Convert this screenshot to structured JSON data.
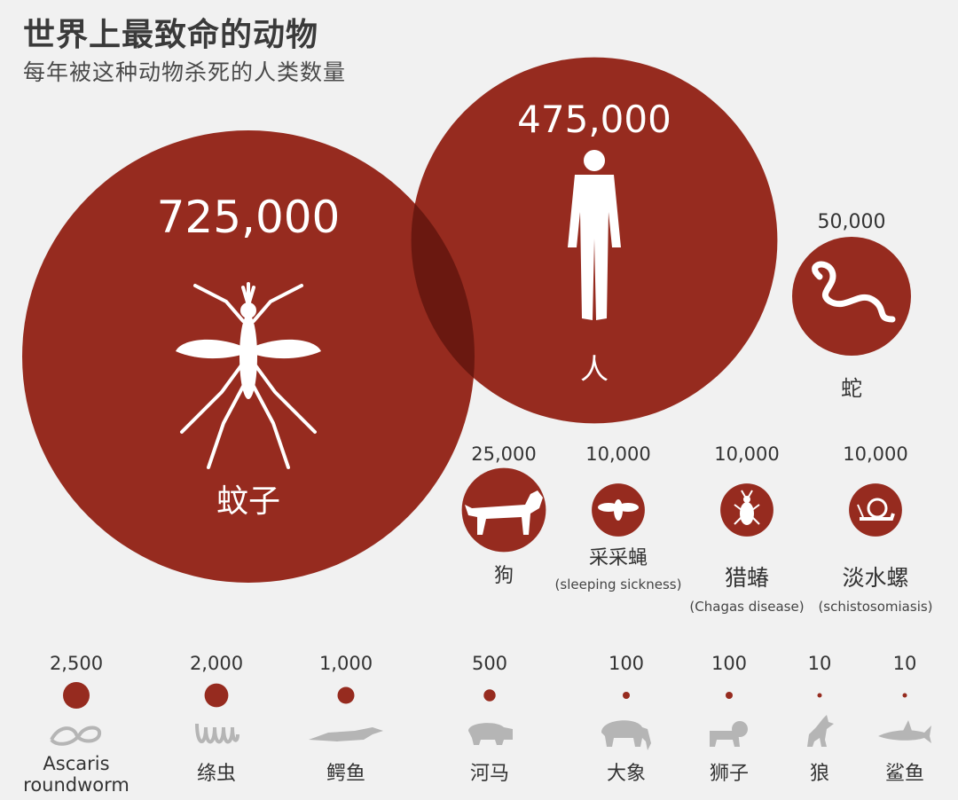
{
  "title": "世界上最致命的动物",
  "subtitle": "每年被这种动物杀死的人类数量",
  "colors": {
    "bubble": "#962b1f",
    "overlap": "#6a1810",
    "icon": "#ffffff",
    "small_icon": "#b5b5b5",
    "label": "#333333",
    "background": "#f1f1f1"
  },
  "chart_data": {
    "type": "bubble",
    "title": "世界上最致命的动物",
    "subtitle": "每年被这种动物杀死的人类数量",
    "series": [
      {
        "label": "蚊子",
        "value": 725000,
        "value_label": "725,000",
        "icon": "mosquito-icon"
      },
      {
        "label": "人",
        "value": 475000,
        "value_label": "475,000",
        "icon": "human-icon"
      },
      {
        "label": "蛇",
        "value": 50000,
        "value_label": "50,000",
        "icon": "snake-icon"
      },
      {
        "label": "狗",
        "value": 25000,
        "value_label": "25,000",
        "icon": "dog-icon"
      },
      {
        "label": "采采蝇",
        "sublabel": "(sleeping sickness)",
        "value": 10000,
        "value_label": "10,000",
        "icon": "tsetse-fly-icon"
      },
      {
        "label": "猎蝽",
        "sublabel": "(Chagas disease)",
        "value": 10000,
        "value_label": "10,000",
        "icon": "assassin-bug-icon"
      },
      {
        "label": "淡水螺",
        "sublabel": "(schistosomiasis)",
        "value": 10000,
        "value_label": "10,000",
        "icon": "snail-icon"
      },
      {
        "label": "Ascaris roundworm",
        "value": 2500,
        "value_label": "2,500",
        "icon": "roundworm-icon"
      },
      {
        "label": "绦虫",
        "value": 2000,
        "value_label": "2,000",
        "icon": "tapeworm-icon"
      },
      {
        "label": "鳄鱼",
        "value": 1000,
        "value_label": "1,000",
        "icon": "crocodile-icon"
      },
      {
        "label": "河马",
        "value": 500,
        "value_label": "500",
        "icon": "hippo-icon"
      },
      {
        "label": "大象",
        "value": 100,
        "value_label": "100",
        "icon": "elephant-icon"
      },
      {
        "label": "狮子",
        "value": 100,
        "value_label": "100",
        "icon": "lion-icon"
      },
      {
        "label": "狼",
        "value": 10,
        "value_label": "10",
        "icon": "wolf-icon"
      },
      {
        "label": "鲨鱼",
        "value": 10,
        "value_label": "10",
        "icon": "shark-icon"
      }
    ]
  }
}
